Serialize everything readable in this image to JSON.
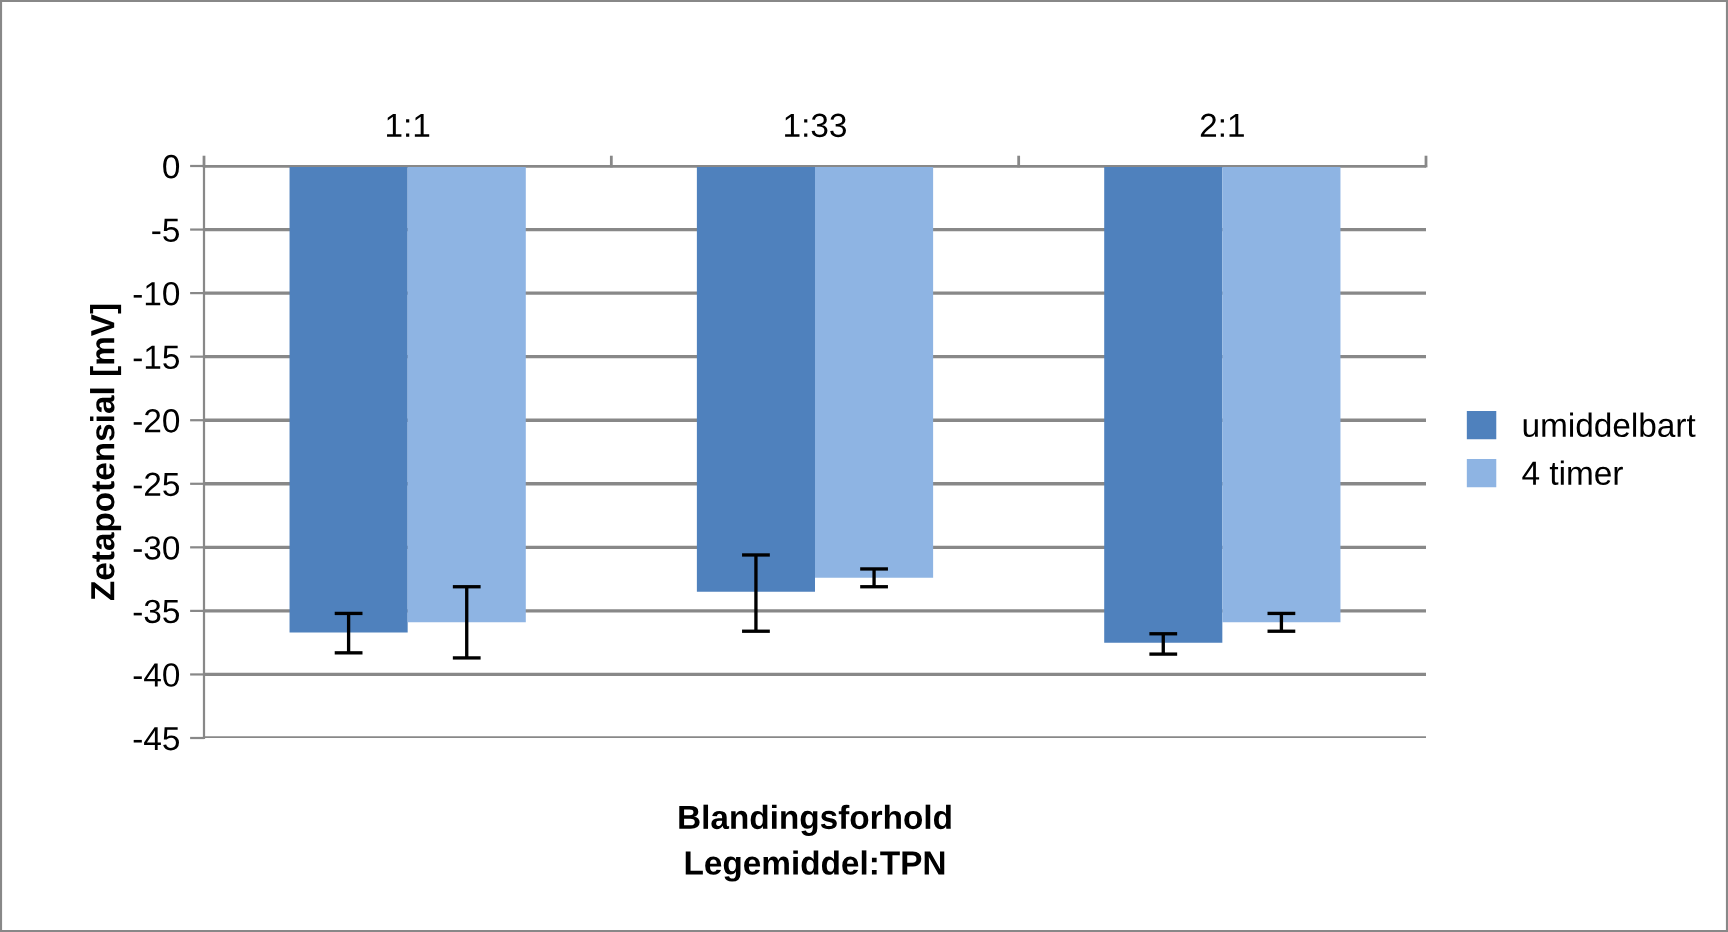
{
  "chart_data": {
    "type": "bar",
    "xlabel": "Blandingsforhold\nLegemiddel:TPN",
    "ylabel": "Zetapotensial [mV]",
    "categories": [
      "1:1",
      "1:33",
      "2:1"
    ],
    "series": [
      {
        "name": "umiddelbart",
        "color": "#4f81bd",
        "values": [
          -36.7,
          -33.5,
          -37.5
        ],
        "errors": [
          [
            -38.3,
            -35.2
          ],
          [
            -36.6,
            -30.6
          ],
          [
            -38.4,
            -36.8
          ]
        ]
      },
      {
        "name": "4 timer",
        "color": "#8eb4e3",
        "values": [
          -35.9,
          -32.4,
          -35.9
        ],
        "errors": [
          [
            -38.7,
            -33.1
          ],
          [
            -33.1,
            -31.7
          ],
          [
            -36.6,
            -35.2
          ]
        ]
      }
    ],
    "ylim": [
      -45,
      0
    ],
    "yticks": [
      -45,
      -40,
      -35,
      -30,
      -25,
      -20,
      -15,
      -10,
      -5,
      0
    ],
    "grid": "y",
    "legend": "right"
  }
}
